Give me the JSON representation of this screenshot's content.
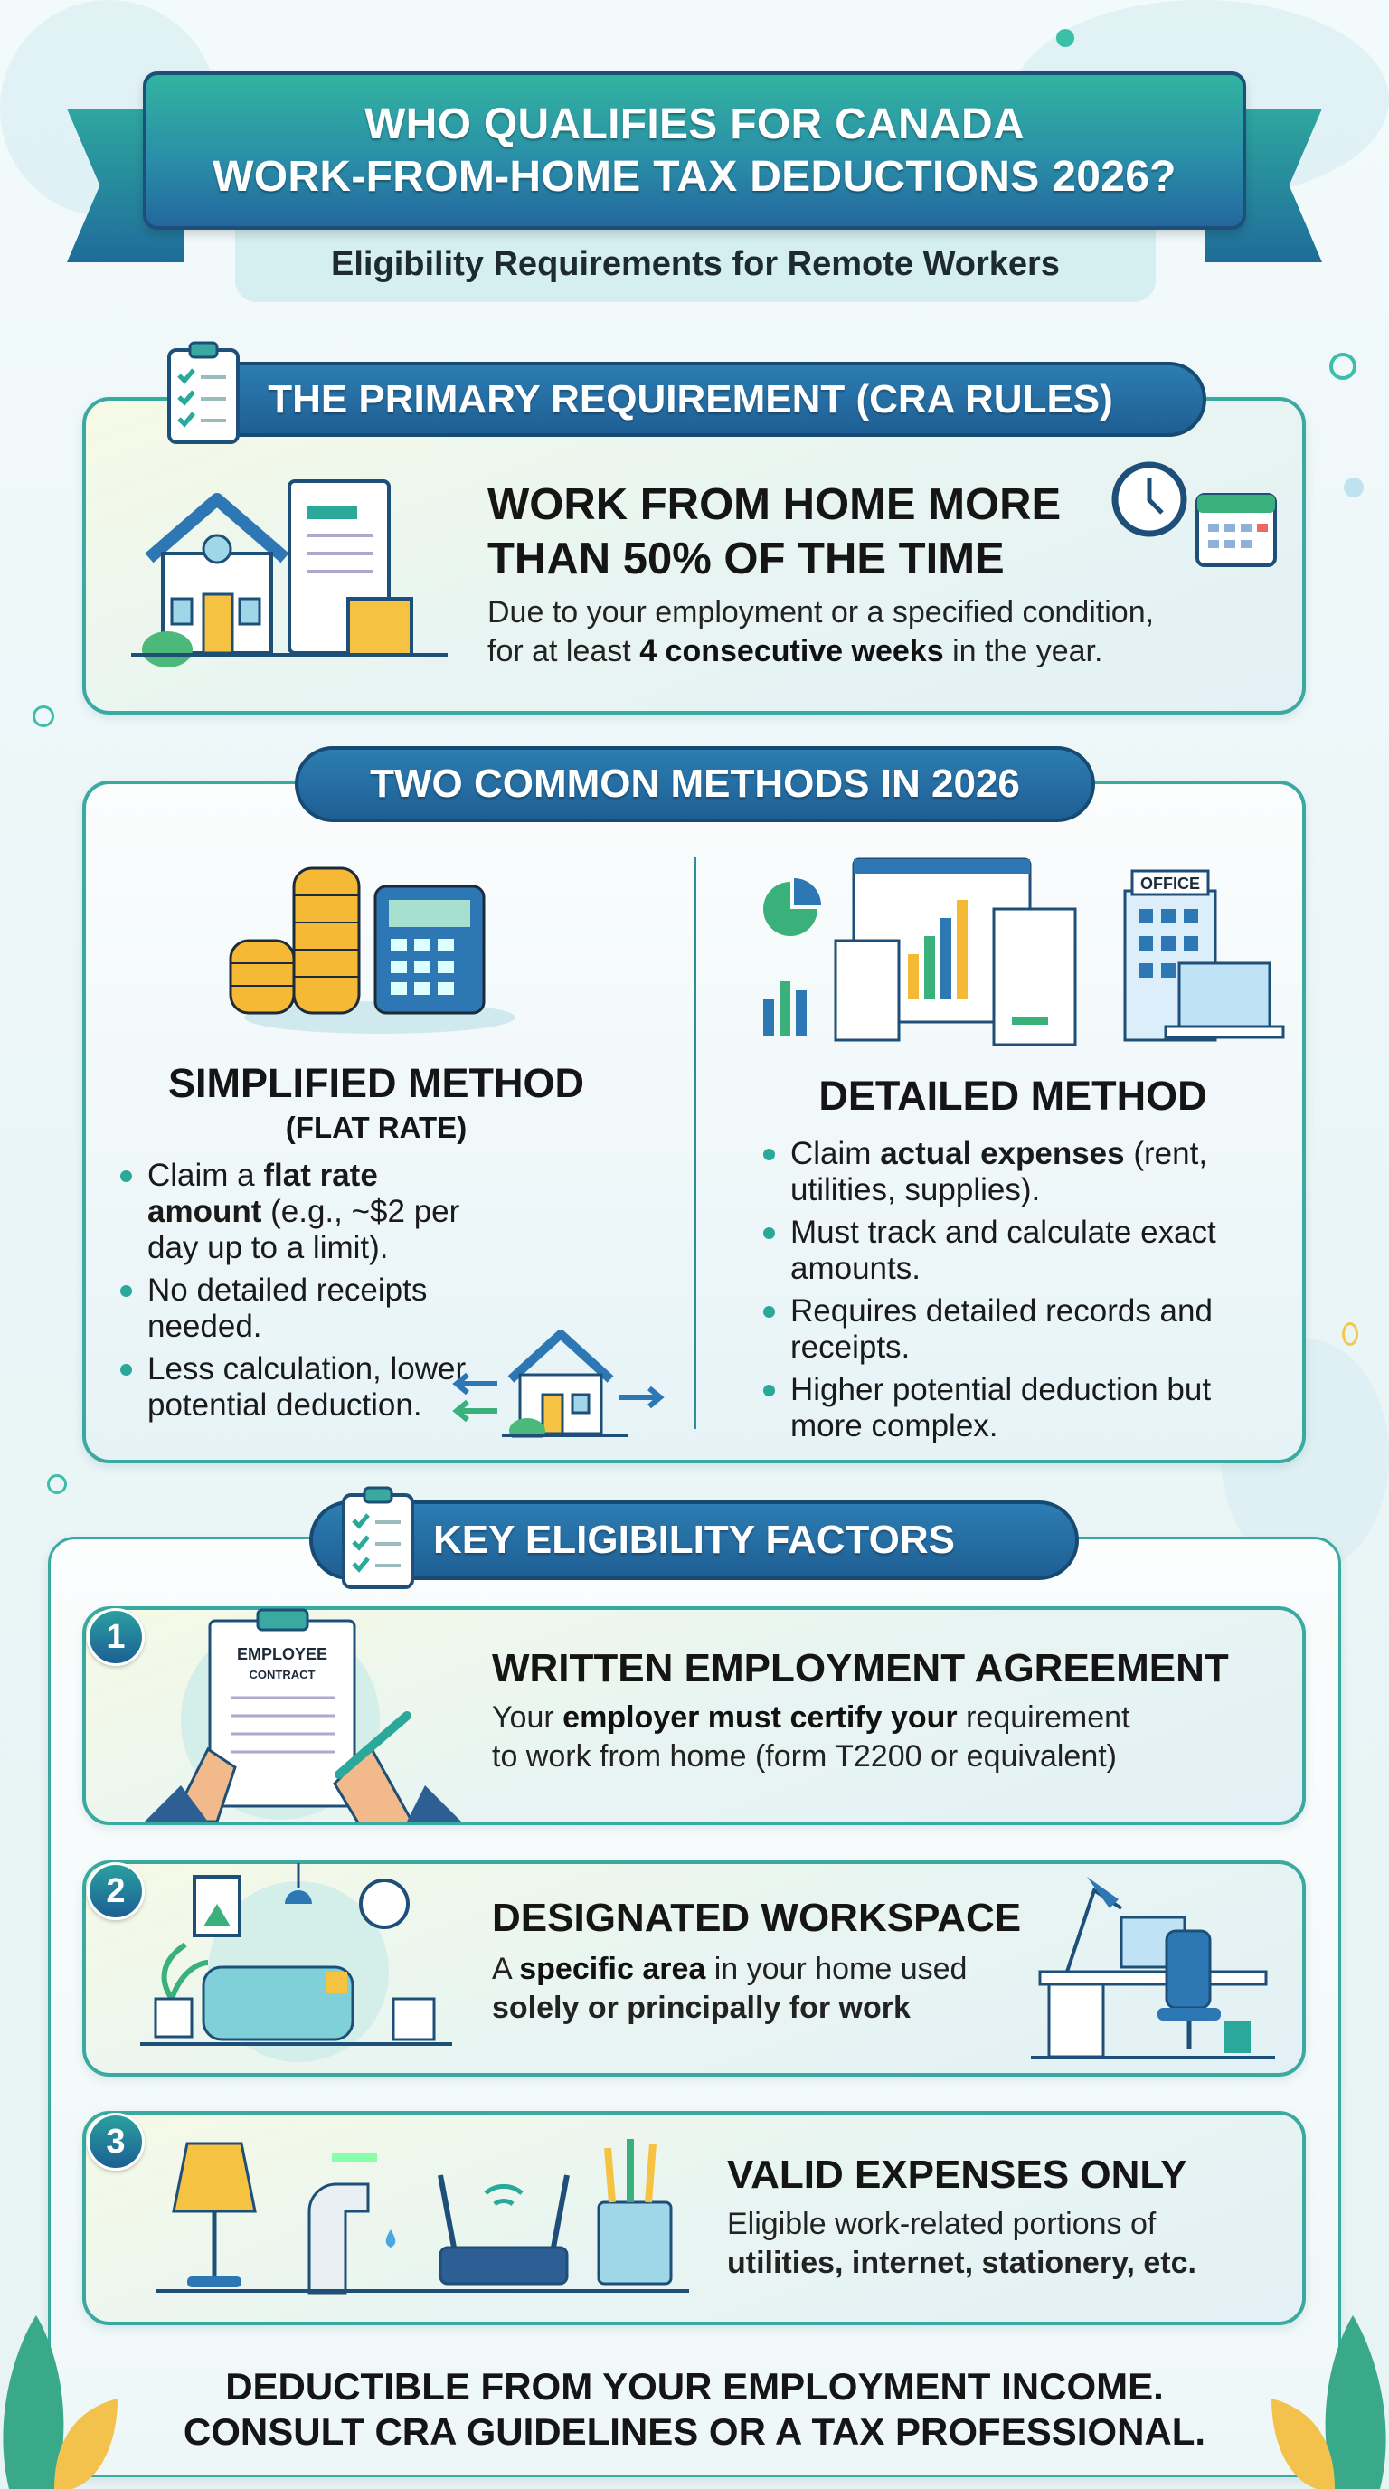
{
  "header": {
    "title_line1": "WHO QUALIFIES FOR CANADA",
    "title_line2": "WORK-FROM-HOME TAX DEDUCTIONS 2026?",
    "subtitle": "Eligibility Requirements for Remote Workers"
  },
  "primary": {
    "section_title": "THE PRIMARY REQUIREMENT (CRA RULES)",
    "heading_line1": "WORK FROM HOME MORE",
    "heading_line2": "THAN 50% OF THE TIME",
    "body_line1": "Due to your employment or a specified condition,",
    "body_line2_pre": "for at least ",
    "body_line2_bold": "4 consecutive weeks",
    "body_line2_post": " in the year."
  },
  "methods": {
    "section_title": "TWO COMMON METHODS IN 2026",
    "simplified": {
      "title": "SIMPLIFIED METHOD",
      "subtitle": "(FLAT RATE)",
      "bullets": [
        {
          "pre": "Claim a ",
          "bold": "flat rate amount",
          "post": " (e.g., ~$2 per day up to a limit)."
        },
        {
          "pre": "No detailed receipts needed.",
          "bold": "",
          "post": ""
        },
        {
          "pre": "Less calculation, lower potential deduction.",
          "bold": "",
          "post": ""
        }
      ]
    },
    "detailed": {
      "title": "DETAILED METHOD",
      "office_sign": "OFFICE",
      "bullets": [
        {
          "pre": "Claim ",
          "bold": "actual expenses",
          "post": " (rent, utilities, supplies)."
        },
        {
          "pre": "Must track and calculate exact amounts.",
          "bold": "",
          "post": ""
        },
        {
          "pre": "Requires detailed records and receipts.",
          "bold": "",
          "post": ""
        },
        {
          "pre": "Higher potential deduction but more complex.",
          "bold": "",
          "post": ""
        }
      ]
    }
  },
  "factors": {
    "section_title": "KEY ELIGIBILITY FACTORS",
    "items": [
      {
        "number": "1",
        "title": "WRITTEN EMPLOYMENT AGREEMENT",
        "contract_label1": "EMPLOYEE",
        "contract_label2": "CONTRACT",
        "l1_pre": "Your ",
        "l1_bold": "employer must certify your",
        "l1_post": " requirement",
        "l2": "to work from home (form T2200 or equivalent)"
      },
      {
        "number": "2",
        "title": "DESIGNATED WORKSPACE",
        "l1_pre": "A ",
        "l1_bold": "specific area",
        "l1_post": " in your home used",
        "l2": "solely or principally for work"
      },
      {
        "number": "3",
        "title": "VALID EXPENSES ONLY",
        "l1_pre": "Eligible work-related portions of",
        "l1_bold": "",
        "l1_post": "",
        "l2": "utilities, internet, stationery, etc."
      }
    ]
  },
  "footer": {
    "line1": "DEDUCTIBLE FROM YOUR EMPLOYMENT INCOME.",
    "line2": "CONSULT CRA GUIDELINES OR A TAX PROFESSIONAL."
  },
  "colors": {
    "teal": "#2aa89a",
    "blue": "#1e5f94",
    "card_border": "#3aa9a0",
    "yellow": "#f5c242"
  }
}
